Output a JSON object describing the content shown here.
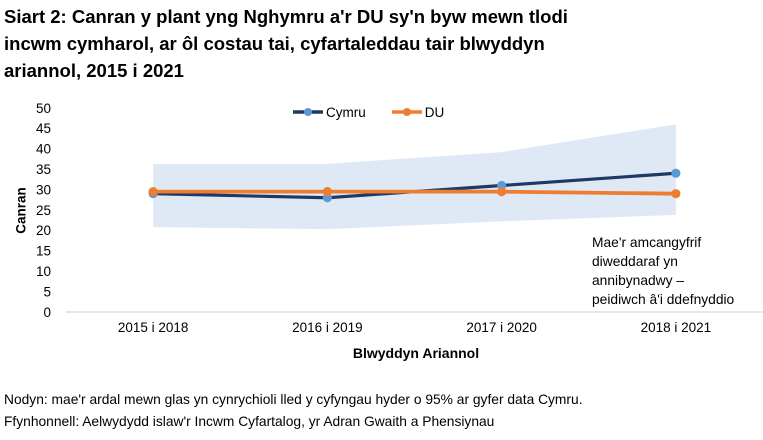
{
  "title_lines": [
    "Siart 2: Canran y plant yng Nghymru a'r DU sy'n byw mewn tlodi",
    "incwm cymharol, ar ôl costau tai, cyfartaleddau tair blwyddyn",
    "ariannol, 2015 i 2021"
  ],
  "chart_data": {
    "type": "line",
    "title": "Siart 2: Canran y plant yng Nghymru a'r DU sy'n byw mewn tlodi incwm cymharol, ar ôl costau tai, cyfartaleddau tair blwyddyn ariannol, 2015 i 2021",
    "categories": [
      "2015 i 2018",
      "2016 i 2019",
      "2017 i 2020",
      "2018 i 2021"
    ],
    "series": [
      {
        "name": "Cymru",
        "values": [
          29,
          28,
          31,
          34
        ],
        "line_color": "#1f3864",
        "marker_color": "#5b9bd5",
        "line_width": 3.2
      },
      {
        "name": "DU",
        "values": [
          29.5,
          29.5,
          29.5,
          29
        ],
        "line_color": "#ed7d31",
        "marker_color": "#ed7d31",
        "line_width": 3.8
      }
    ],
    "confidence_band": {
      "applies_to": "Cymru",
      "level": "95%",
      "lower": [
        20.8,
        20.3,
        22.2,
        23.8
      ],
      "upper": [
        36.3,
        36.3,
        39.2,
        46
      ],
      "color": "#dee9f5"
    },
    "xlabel": "Blwyddyn Ariannol",
    "ylabel": "Canran",
    "ylim": [
      0,
      50
    ],
    "yticks": [
      0,
      5,
      10,
      15,
      20,
      25,
      30,
      35,
      40,
      45,
      50
    ],
    "grid": false,
    "legend_position": "top",
    "axis_line_color": "#d9dfe8"
  },
  "annotation": {
    "lines": [
      "Mae'r amcangyfrif",
      "diweddaraf yn",
      "annibynadwy –",
      "peidiwch â'i ddefnyddio"
    ]
  },
  "footer": {
    "note": "Nodyn: mae'r ardal mewn glas yn cynrychioli lled y cyfyngau hyder o 95% ar gyfer data Cymru.",
    "source": "Ffynhonnell: Aelwydydd islaw'r Incwm Cyfartalog, yr Adran Gwaith a Phensiynau"
  }
}
